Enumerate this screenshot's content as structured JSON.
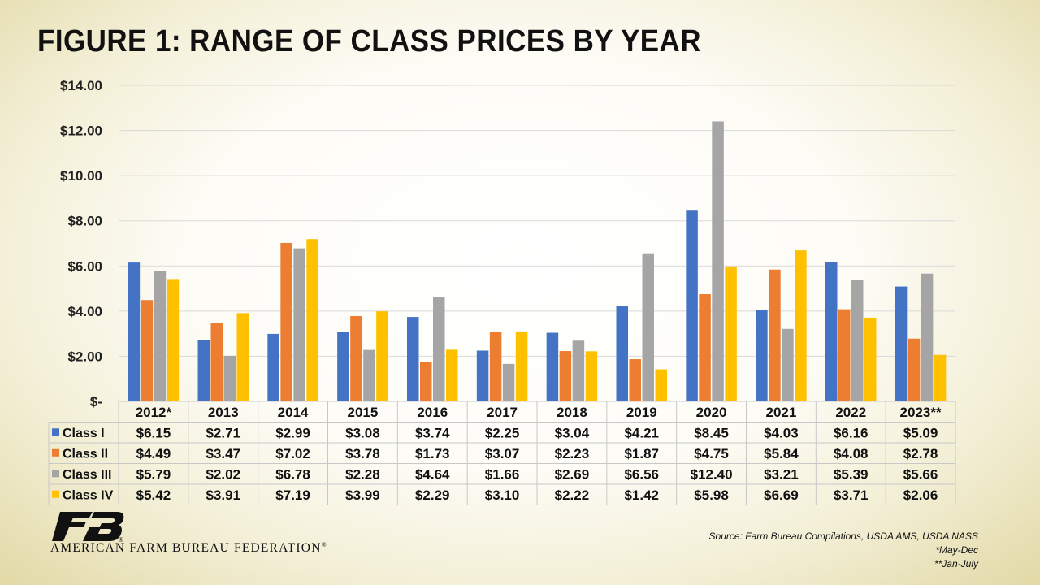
{
  "title": "FIGURE 1: RANGE OF CLASS PRICES BY YEAR",
  "org_name": "AMERICAN FARM BUREAU FEDERATION",
  "org_reg": "®",
  "logo_reg": "®",
  "source": "Source: Farm Bureau Compilations, USDA AMS, USDA NASS",
  "footnote_1": "*May-Dec",
  "footnote_2": "**Jan-July",
  "chart_data": {
    "type": "bar",
    "categories": [
      "2012*",
      "2013",
      "2014",
      "2015",
      "2016",
      "2017",
      "2018",
      "2019",
      "2020",
      "2021",
      "2022",
      "2023**"
    ],
    "series": [
      {
        "name": "Class I",
        "color": "#4472C4",
        "values": [
          6.15,
          2.71,
          2.99,
          3.08,
          3.74,
          2.25,
          3.04,
          4.21,
          8.45,
          4.03,
          6.16,
          5.09
        ],
        "labels": [
          "$6.15",
          "$2.71",
          "$2.99",
          "$3.08",
          "$3.74",
          "$2.25",
          "$3.04",
          "$4.21",
          "$8.45",
          "$4.03",
          "$6.16",
          "$5.09"
        ]
      },
      {
        "name": "Class II",
        "color": "#ED7D31",
        "values": [
          4.49,
          3.47,
          7.02,
          3.78,
          1.73,
          3.07,
          2.23,
          1.87,
          4.75,
          5.84,
          4.08,
          2.78
        ],
        "labels": [
          "$4.49",
          "$3.47",
          "$7.02",
          "$3.78",
          "$1.73",
          "$3.07",
          "$2.23",
          "$1.87",
          "$4.75",
          "$5.84",
          "$4.08",
          "$2.78"
        ]
      },
      {
        "name": "Class III",
        "color": "#A5A5A5",
        "values": [
          5.79,
          2.02,
          6.78,
          2.28,
          4.64,
          1.66,
          2.69,
          6.56,
          12.4,
          3.21,
          5.39,
          5.66
        ],
        "labels": [
          "$5.79",
          "$2.02",
          "$6.78",
          "$2.28",
          "$4.64",
          "$1.66",
          "$2.69",
          "$6.56",
          "$12.40",
          "$3.21",
          "$5.39",
          "$5.66"
        ]
      },
      {
        "name": "Class IV",
        "color": "#FFC000",
        "values": [
          5.42,
          3.91,
          7.19,
          3.99,
          2.29,
          3.1,
          2.22,
          1.42,
          5.98,
          6.69,
          3.71,
          2.06
        ],
        "labels": [
          "$5.42",
          "$3.91",
          "$7.19",
          "$3.99",
          "$2.29",
          "$3.10",
          "$2.22",
          "$1.42",
          "$5.98",
          "$6.69",
          "$3.71",
          "$2.06"
        ]
      }
    ],
    "y_ticks": [
      0,
      2,
      4,
      6,
      8,
      10,
      12,
      14
    ],
    "y_tick_labels": [
      "$-",
      "$2.00",
      "$4.00",
      "$6.00",
      "$8.00",
      "$10.00",
      "$12.00",
      "$14.00"
    ],
    "ylim": [
      0,
      14
    ],
    "grid": true,
    "legend": "data-table"
  }
}
